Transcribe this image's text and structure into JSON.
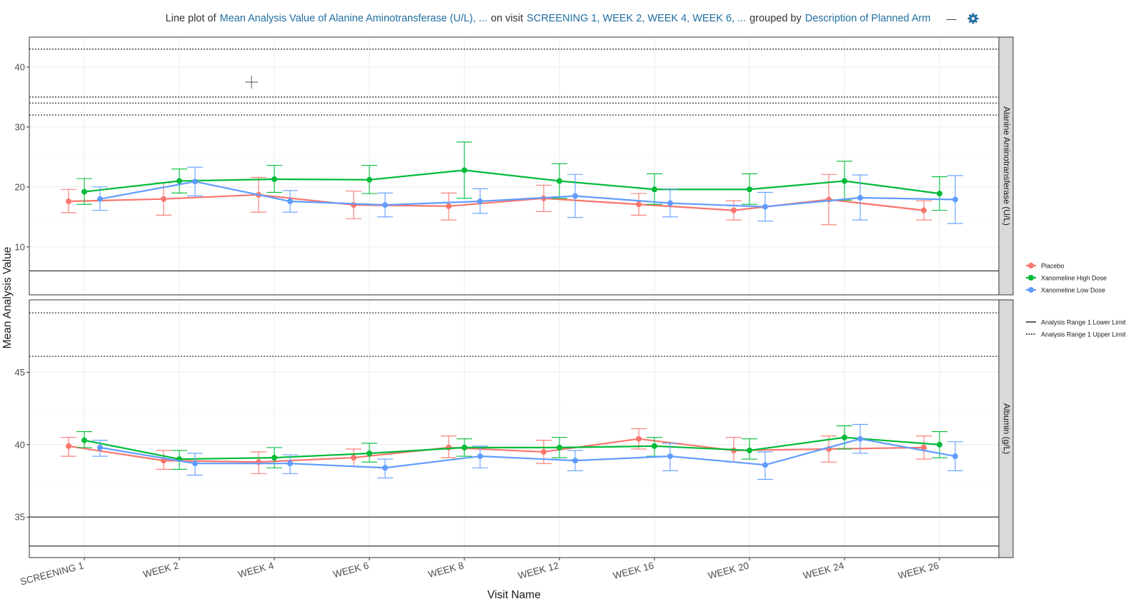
{
  "header": {
    "prefix": "Line plot of",
    "param": "Mean Analysis Value of Alanine Aminotransferase (U/L), ...",
    "on_visit": "on visit",
    "visits": "SCREENING 1, WEEK 2, WEEK 4, WEEK 6, ...",
    "grouped_by": "grouped by",
    "group": "Description of Planned Arm",
    "collapse": "—",
    "settings_icon": "gear-icon"
  },
  "colors": {
    "Placebo": "#F8766D",
    "Xanomeline High Dose": "#00BA38",
    "Xanomeline Low Dose": "#619CFF",
    "strip_bg": "#d9d9d9",
    "panel_border": "#333333",
    "grid": "#ebebeb",
    "accent": "#1f6ea0"
  },
  "chart_data": {
    "type": "line",
    "xlabel": "Visit Name",
    "ylabel": "Mean Analysis Value",
    "categories": [
      "SCREENING 1",
      "WEEK 2",
      "WEEK 4",
      "WEEK 6",
      "WEEK 8",
      "WEEK 12",
      "WEEK 16",
      "WEEK 20",
      "WEEK 24",
      "WEEK 26"
    ],
    "grid": true,
    "legend_position": "right",
    "legend": {
      "series": [
        "Placebo",
        "Xanomeline High Dose",
        "Xanomeline Low Dose"
      ],
      "lines": [
        {
          "label": "Analysis Range 1 Lower Limit",
          "style": "solid"
        },
        {
          "label": "Analysis Range 1 Upper Limit",
          "style": "dotted"
        }
      ]
    },
    "panels": [
      {
        "label": "Alanine Aminotransferase (U/L)",
        "ylim": [
          2,
          45
        ],
        "yticks": [
          10,
          20,
          30,
          40
        ],
        "ref_lines": [
          {
            "y": 43,
            "style": "dotted"
          },
          {
            "y": 35,
            "style": "dotted"
          },
          {
            "y": 34,
            "style": "dotted"
          },
          {
            "y": 32,
            "style": "dotted"
          },
          {
            "y": 6,
            "style": "solid"
          }
        ],
        "series": [
          {
            "name": "Placebo",
            "values": [
              17.6,
              18.0,
              18.7,
              17.0,
              16.8,
              18.1,
              17.1,
              16.1,
              17.9,
              16.1
            ],
            "err_low": [
              15.7,
              15.3,
              15.8,
              14.7,
              14.5,
              15.9,
              15.3,
              14.5,
              13.7,
              14.5
            ],
            "err_high": [
              19.6,
              20.7,
              21.6,
              19.3,
              19.0,
              20.3,
              18.9,
              17.7,
              22.1,
              17.7
            ]
          },
          {
            "name": "Xanomeline High Dose",
            "values": [
              19.2,
              21.0,
              21.3,
              21.2,
              22.8,
              21.0,
              19.6,
              19.6,
              21.0,
              18.9
            ],
            "err_low": [
              17.1,
              19.0,
              19.1,
              18.9,
              18.1,
              18.1,
              17.1,
              17.1,
              17.8,
              16.1
            ],
            "err_high": [
              21.4,
              23.0,
              23.6,
              23.6,
              27.5,
              23.9,
              22.2,
              22.2,
              24.3,
              21.7
            ]
          },
          {
            "name": "Xanomeline Low Dose",
            "values": [
              18.0,
              20.9,
              17.6,
              17.0,
              17.6,
              18.5,
              17.3,
              16.7,
              18.2,
              17.9
            ],
            "err_low": [
              16.1,
              18.5,
              15.8,
              15.0,
              15.6,
              14.9,
              15.0,
              14.3,
              14.5,
              13.9
            ],
            "err_high": [
              20.0,
              23.3,
              19.4,
              19.0,
              19.7,
              22.1,
              19.6,
              19.1,
              22.0,
              21.9
            ]
          }
        ]
      },
      {
        "label": "Albumin (g/L)",
        "ylim": [
          32.2,
          50.0
        ],
        "yticks": [
          35,
          40,
          45
        ],
        "ref_lines": [
          {
            "y": 49.1,
            "style": "dotted"
          },
          {
            "y": 46.1,
            "style": "dotted"
          },
          {
            "y": 35,
            "style": "solid"
          },
          {
            "y": 33,
            "style": "solid"
          }
        ],
        "series": [
          {
            "name": "Placebo",
            "values": [
              39.9,
              38.9,
              38.8,
              39.1,
              39.8,
              39.5,
              40.4,
              39.6,
              39.7,
              39.8
            ],
            "err_low": [
              39.2,
              38.3,
              38.0,
              38.5,
              39.1,
              38.7,
              39.7,
              38.8,
              38.8,
              39.0
            ],
            "err_high": [
              40.5,
              39.6,
              39.5,
              39.7,
              40.6,
              40.3,
              41.1,
              40.5,
              40.6,
              40.6
            ]
          },
          {
            "name": "Xanomeline High Dose",
            "values": [
              40.3,
              39.0,
              39.1,
              39.4,
              39.8,
              39.8,
              39.9,
              39.6,
              40.5,
              40.0
            ],
            "err_low": [
              39.8,
              38.3,
              38.4,
              38.8,
              39.2,
              39.1,
              39.2,
              39.0,
              39.7,
              39.1
            ],
            "err_high": [
              40.9,
              39.6,
              39.8,
              40.1,
              40.4,
              40.5,
              40.5,
              40.4,
              41.3,
              40.9
            ]
          },
          {
            "name": "Xanomeline Low Dose",
            "values": [
              39.8,
              38.7,
              38.7,
              38.4,
              39.2,
              38.9,
              39.2,
              38.6,
              40.4,
              39.2
            ],
            "err_low": [
              39.2,
              37.9,
              38.0,
              37.7,
              38.4,
              38.2,
              38.2,
              37.6,
              39.4,
              38.2
            ],
            "err_high": [
              40.3,
              39.4,
              39.3,
              39.0,
              39.9,
              39.6,
              40.1,
              39.5,
              41.4,
              40.2
            ]
          }
        ]
      }
    ]
  }
}
